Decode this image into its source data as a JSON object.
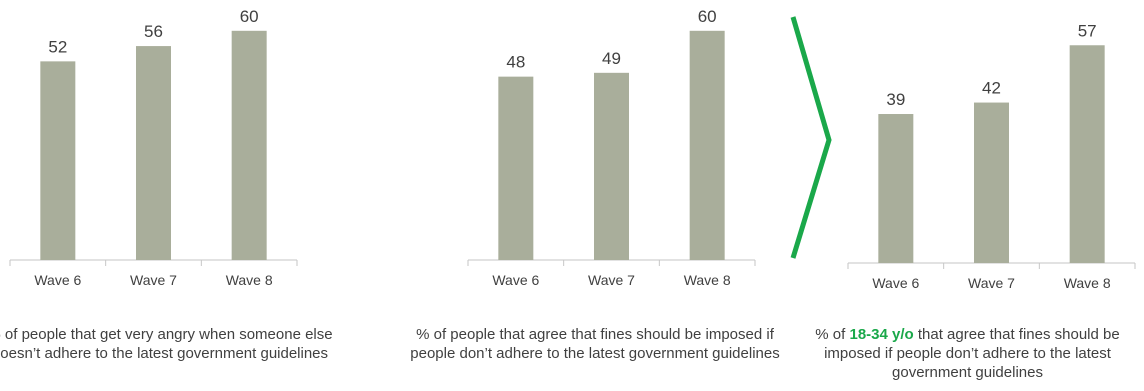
{
  "colors": {
    "bar": "#a9ae9b",
    "axis": "#c6c6c6",
    "text": "#404040",
    "accent": "#1aa84a"
  },
  "chart_data": [
    {
      "type": "bar",
      "categories": [
        "Wave 6",
        "Wave 7",
        "Wave 8"
      ],
      "values": [
        52,
        56,
        60
      ],
      "caption": "% of people that get very angry when someone else doesn’t adhere to the latest government guidelines"
    },
    {
      "type": "bar",
      "categories": [
        "Wave 6",
        "Wave 7",
        "Wave 8"
      ],
      "values": [
        48,
        49,
        60
      ],
      "caption": "% of people that agree that fines should be imposed if people don’t adhere to the latest government guidelines"
    },
    {
      "type": "bar",
      "categories": [
        "Wave 6",
        "Wave 7",
        "Wave 8"
      ],
      "values": [
        39,
        42,
        57
      ],
      "caption_prefix": "% of ",
      "caption_highlight": "18-34 y/o",
      "caption_suffix": " that agree that fines should be imposed if people don’t adhere to the latest government guidelines"
    }
  ]
}
